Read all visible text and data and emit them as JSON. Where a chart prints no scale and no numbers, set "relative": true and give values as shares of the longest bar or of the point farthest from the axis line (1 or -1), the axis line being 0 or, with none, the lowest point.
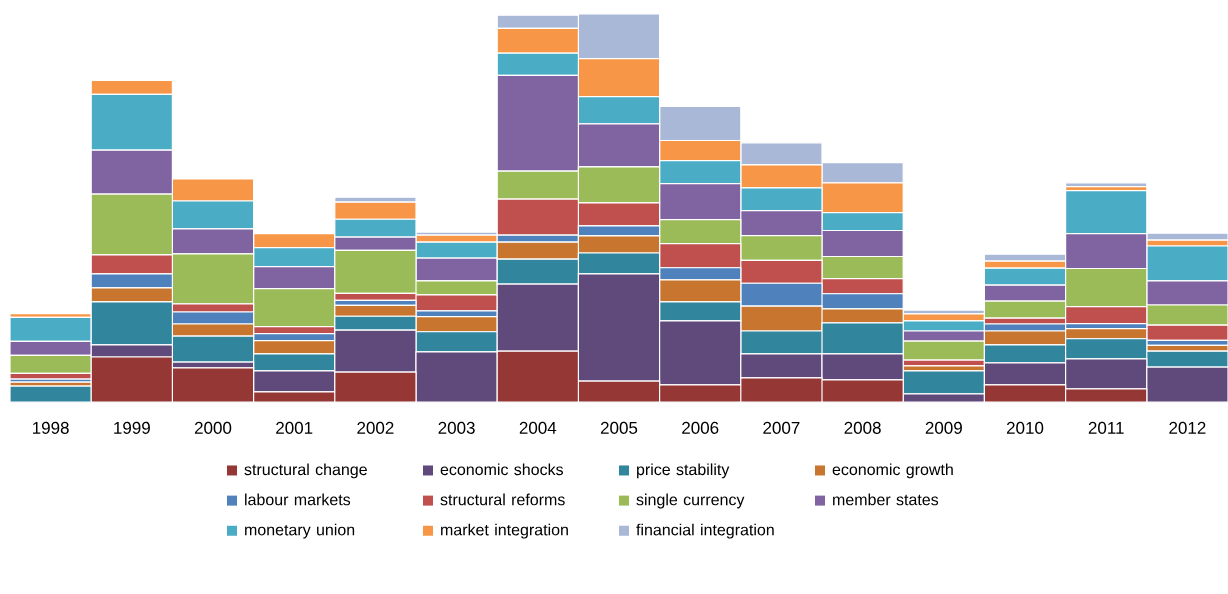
{
  "chart_data": {
    "type": "bar",
    "stacked": true,
    "relative": true,
    "legend": "bottom",
    "categories": [
      "1998",
      "1999",
      "2000",
      "2001",
      "2002",
      "2003",
      "2004",
      "2005",
      "2006",
      "2007",
      "2008",
      "2009",
      "2010",
      "2011",
      "2012"
    ],
    "series": [
      {
        "name": "structural change",
        "color": "#953735",
        "values": [
          0,
          0.116,
          0.088,
          0.026,
          0.077,
          0,
          0.131,
          0.054,
          0.044,
          0.062,
          0.057,
          0,
          0.044,
          0.034,
          0
        ]
      },
      {
        "name": "economic shocks",
        "color": "#604a7b",
        "values": [
          0,
          0.031,
          0.015,
          0.054,
          0.108,
          0.129,
          0.173,
          0.276,
          0.165,
          0.062,
          0.067,
          0.021,
          0.057,
          0.077,
          0.09
        ]
      },
      {
        "name": "price stability",
        "color": "#31859c",
        "values": [
          0.041,
          0.111,
          0.067,
          0.044,
          0.036,
          0.052,
          0.064,
          0.054,
          0.049,
          0.059,
          0.08,
          0.059,
          0.046,
          0.052,
          0.041
        ]
      },
      {
        "name": "economic growth",
        "color": "#c8762f",
        "values": [
          0.01,
          0.036,
          0.031,
          0.034,
          0.028,
          0.039,
          0.044,
          0.044,
          0.057,
          0.064,
          0.036,
          0.013,
          0.036,
          0.026,
          0.015
        ]
      },
      {
        "name": "labour markets",
        "color": "#4f81bd",
        "values": [
          0.008,
          0.036,
          0.031,
          0.018,
          0.013,
          0.015,
          0.018,
          0.026,
          0.031,
          0.059,
          0.039,
          null,
          0.018,
          0.013,
          0.013
        ]
      },
      {
        "name": "structural reforms",
        "color": "#c0504d",
        "values": [
          0.015,
          0.049,
          0.021,
          0.018,
          0.018,
          0.041,
          0.093,
          0.059,
          0.062,
          0.059,
          0.039,
          0.015,
          0.015,
          0.044,
          0.039
        ]
      },
      {
        "name": "single currency",
        "color": "#9bbb59",
        "values": [
          0.046,
          0.157,
          0.129,
          0.098,
          0.111,
          0.036,
          0.072,
          0.093,
          0.062,
          0.064,
          0.057,
          0.049,
          0.044,
          0.098,
          0.052
        ]
      },
      {
        "name": "member states",
        "color": "#8064a2",
        "values": [
          0.036,
          0.113,
          0.064,
          0.057,
          0.034,
          0.059,
          0.247,
          0.111,
          0.093,
          0.064,
          0.067,
          0.026,
          0.041,
          0.09,
          0.062
        ]
      },
      {
        "name": "monetary union",
        "color": "#4bacc6",
        "values": [
          0.062,
          0.144,
          0.072,
          0.049,
          0.046,
          0.041,
          0.057,
          0.07,
          0.059,
          0.059,
          0.046,
          0.026,
          0.044,
          0.111,
          0.09
        ]
      },
      {
        "name": "market integration",
        "color": "#f79646",
        "values": [
          0.01,
          0.036,
          0.057,
          0.036,
          0.044,
          0.018,
          0.064,
          0.098,
          0.052,
          0.059,
          0.077,
          0.018,
          0.018,
          0.01,
          0.015
        ]
      },
      {
        "name": "financial integration",
        "color": "#a9b8d6",
        "values": [
          0,
          0,
          0,
          0,
          0.013,
          0.008,
          0.034,
          0.115,
          0.088,
          0.057,
          0.052,
          0.01,
          0.018,
          0.01,
          0.018
        ]
      }
    ]
  }
}
